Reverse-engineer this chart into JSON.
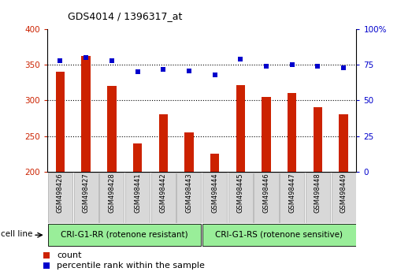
{
  "title": "GDS4014 / 1396317_at",
  "samples": [
    "GSM498426",
    "GSM498427",
    "GSM498428",
    "GSM498441",
    "GSM498442",
    "GSM498443",
    "GSM498444",
    "GSM498445",
    "GSM498446",
    "GSM498447",
    "GSM498448",
    "GSM498449"
  ],
  "counts": [
    340,
    362,
    320,
    240,
    280,
    255,
    225,
    322,
    305,
    310,
    290,
    280
  ],
  "percentiles": [
    78,
    80,
    78,
    70,
    72,
    71,
    68,
    79,
    74,
    75,
    74,
    73
  ],
  "group1_label": "CRI-G1-RR (rotenone resistant)",
  "group2_label": "CRI-G1-RS (rotenone sensitive)",
  "group1_count": 6,
  "group2_count": 6,
  "ylim_left": [
    200,
    400
  ],
  "ylim_right": [
    0,
    100
  ],
  "yticks_left": [
    200,
    250,
    300,
    350,
    400
  ],
  "yticks_right": [
    0,
    25,
    50,
    75,
    100
  ],
  "ytick_right_labels": [
    "0",
    "25",
    "50",
    "75",
    "100%"
  ],
  "bar_color": "#cc2200",
  "dot_color": "#0000cc",
  "bg_color": "#ffffff",
  "cell_line_label": "cell line",
  "legend_count": "count",
  "legend_percentile": "percentile rank within the sample",
  "group_bg_color": "#99ee99",
  "tick_bg_color": "#d8d8d8"
}
